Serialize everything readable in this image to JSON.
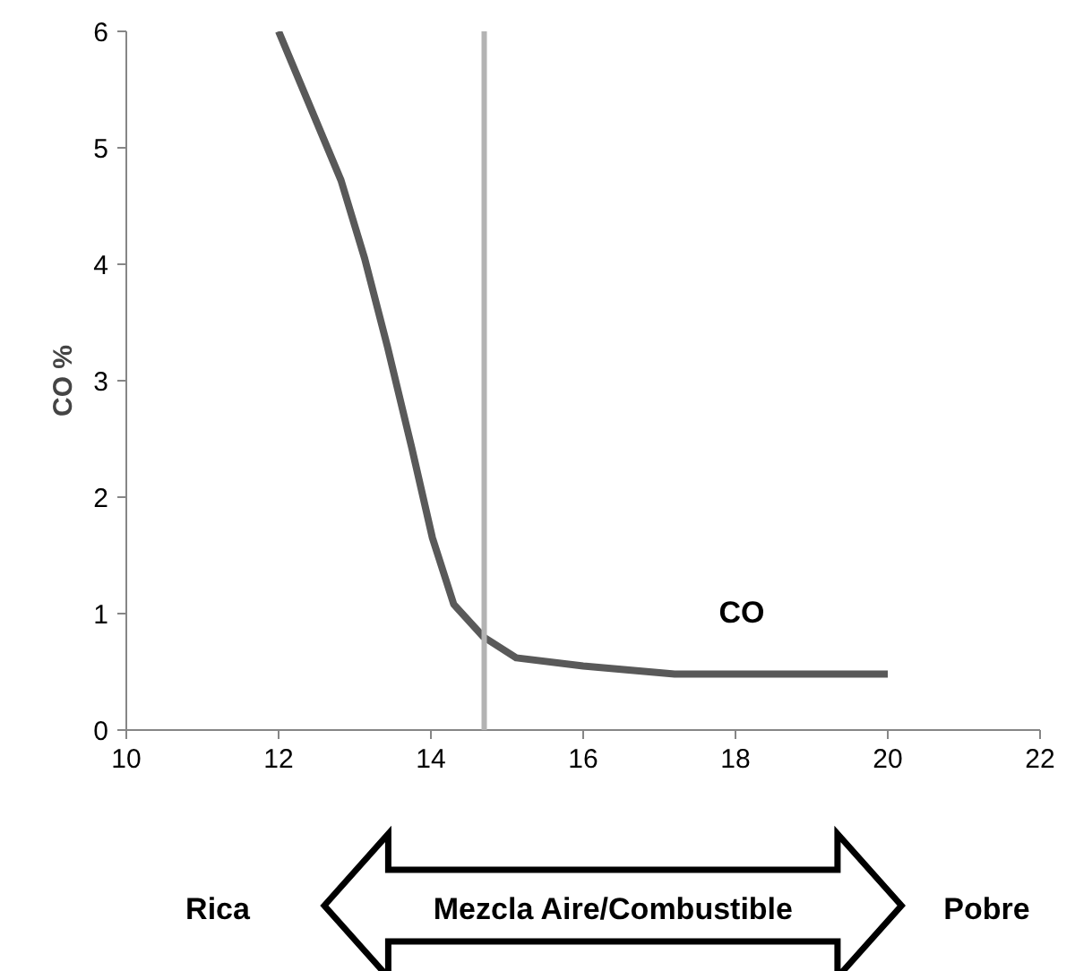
{
  "chart_data": {
    "type": "line",
    "ylabel": "CO %",
    "x": [
      12,
      12.82,
      13.13,
      13.43,
      13.75,
      14.02,
      14.3,
      14.69,
      15.12,
      16,
      17.2,
      18.5,
      20
    ],
    "series": [
      {
        "name": "CO",
        "color": "#595959",
        "values": [
          6,
          4.72,
          4.05,
          3.29,
          2.42,
          1.65,
          1.08,
          0.8,
          0.62,
          0.55,
          0.48,
          0.48,
          0.48
        ]
      }
    ],
    "xlim": [
      10,
      22
    ],
    "xticks": [
      10,
      12,
      14,
      16,
      18,
      20,
      22
    ],
    "ylim": [
      0,
      6
    ],
    "yticks": [
      0,
      1,
      2,
      3,
      4,
      5,
      6
    ],
    "ref_lines": [
      {
        "axis": "x",
        "value": 14.7,
        "color": "#b3b3b3"
      }
    ],
    "grid": false,
    "marker": "none",
    "line_style": "solid",
    "annotations": [
      "Rica",
      "Mezcla Aire/Combustible",
      "Pobre"
    ]
  }
}
